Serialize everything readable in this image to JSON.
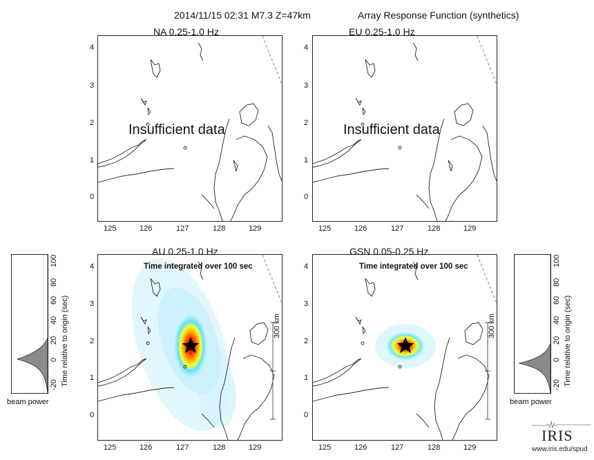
{
  "header": {
    "event": "2014/11/15 02:31  M7.3  Z=47km",
    "subtitle": "Array Response Function (synthetics)"
  },
  "panels": [
    {
      "id": "na",
      "title": "NA  0.25-1.0 Hz",
      "status": "Insufficient data"
    },
    {
      "id": "eu",
      "title": "EU  0.25-1.0 Hz",
      "status": "Insufficient data"
    },
    {
      "id": "au",
      "title": "AU  0.25-1.0 Hz",
      "note": "Time integrated over 100 sec",
      "scale_bar": "300 km"
    },
    {
      "id": "gsn",
      "title": "GSN  0.05-0.25 Hz",
      "note": "Time integrated over 100 sec",
      "scale_bar": "300 km"
    }
  ],
  "axes": {
    "x_ticks": [
      "125",
      "126",
      "127",
      "128",
      "129"
    ],
    "y_ticks": [
      "4",
      "3",
      "2",
      "1",
      "0"
    ]
  },
  "beam": {
    "ylabel": "Time relative to origin (sec)",
    "ticks": [
      "100",
      "80",
      "60",
      "40",
      "20",
      "0",
      "-20"
    ],
    "caption": "beam power"
  },
  "logo": {
    "text": "IRIS",
    "url": "www.iris.edu/spud"
  },
  "colors": {
    "beam_fill": "#8a8a8a",
    "epicenter_star": "#000000"
  }
}
